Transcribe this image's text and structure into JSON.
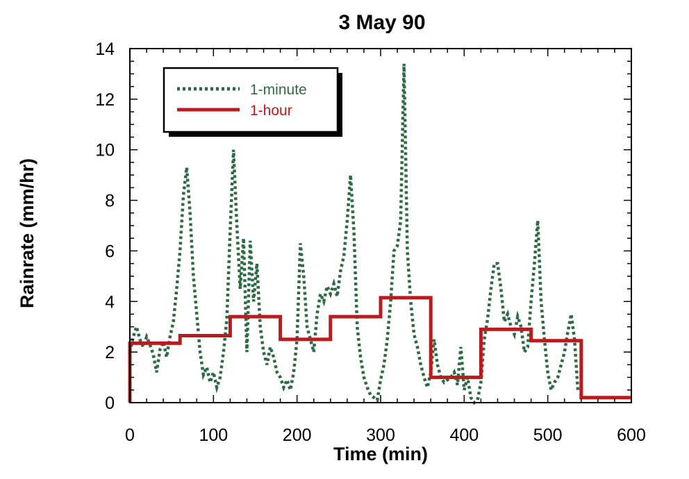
{
  "chart_data": {
    "type": "line",
    "title": "3 May 90",
    "xlabel": "Time (min)",
    "ylabel": "Rainrate (mm/hr)",
    "xlim": [
      0,
      600
    ],
    "ylim": [
      0,
      14
    ],
    "xticks": [
      0,
      100,
      200,
      300,
      400,
      500,
      600
    ],
    "yticks": [
      0,
      2,
      4,
      6,
      8,
      10,
      12,
      14
    ],
    "grid": false,
    "legend_position": "top-left",
    "series": [
      {
        "name": "1-minute",
        "style": "dotted",
        "color": "#2e6b45",
        "x": [
          0,
          4,
          8,
          12,
          16,
          20,
          24,
          28,
          32,
          36,
          40,
          44,
          48,
          52,
          56,
          60,
          64,
          68,
          72,
          76,
          80,
          84,
          88,
          92,
          96,
          100,
          104,
          108,
          112,
          116,
          120,
          124,
          128,
          132,
          136,
          140,
          144,
          148,
          152,
          156,
          160,
          164,
          168,
          172,
          176,
          180,
          184,
          188,
          192,
          196,
          200,
          204,
          208,
          212,
          216,
          220,
          224,
          228,
          232,
          236,
          240,
          244,
          248,
          252,
          256,
          260,
          264,
          268,
          272,
          276,
          280,
          284,
          288,
          292,
          296,
          300,
          304,
          308,
          312,
          316,
          320,
          324,
          328,
          332,
          336,
          340,
          344,
          348,
          352,
          356,
          360,
          364,
          368,
          372,
          376,
          380,
          384,
          388,
          392,
          396,
          400,
          404,
          408,
          412,
          416,
          420,
          424,
          428,
          432,
          436,
          440,
          444,
          448,
          452,
          456,
          460,
          464,
          468,
          472,
          476,
          480,
          484,
          488,
          492,
          496,
          500,
          504,
          508,
          512,
          516,
          520,
          524,
          528,
          532,
          536
        ],
        "y": [
          2.0,
          2.6,
          3.0,
          2.5,
          2.2,
          2.6,
          2.3,
          1.9,
          1.2,
          2.1,
          2.4,
          1.8,
          2.6,
          3.2,
          4.5,
          6.0,
          8.2,
          9.3,
          7.5,
          5.0,
          3.5,
          2.0,
          1.1,
          1.4,
          0.8,
          1.2,
          0.6,
          1.0,
          2.0,
          3.3,
          6.8,
          10.0,
          7.0,
          4.5,
          6.5,
          2.0,
          6.4,
          4.0,
          5.5,
          3.0,
          2.0,
          1.5,
          2.2,
          1.8,
          1.2,
          1.0,
          0.6,
          0.9,
          0.5,
          1.2,
          2.5,
          6.3,
          5.0,
          3.0,
          2.5,
          2.0,
          3.5,
          4.3,
          4.0,
          4.6,
          4.3,
          4.7,
          4.2,
          5.2,
          5.8,
          7.2,
          9.0,
          6.8,
          3.0,
          1.8,
          1.0,
          0.6,
          0.3,
          0.2,
          0.1,
          0.9,
          1.5,
          2.5,
          4.0,
          6.0,
          6.2,
          7.2,
          13.4,
          6.0,
          4.0,
          2.7,
          2.2,
          1.5,
          1.0,
          0.6,
          1.2,
          2.5,
          1.5,
          1.0,
          0.8,
          0.9,
          1.0,
          1.2,
          0.7,
          2.2,
          0.5,
          1.0,
          0.2,
          0.0,
          0.1,
          0.8,
          2.5,
          3.3,
          4.5,
          5.5,
          5.5,
          4.5,
          3.2,
          3.5,
          3.0,
          2.7,
          3.4,
          3.0,
          2.0,
          2.2,
          4.0,
          5.5,
          7.2,
          4.0,
          2.5,
          1.2,
          0.5,
          0.8,
          1.0,
          1.5,
          2.0,
          2.8,
          3.5,
          2.5,
          0.5
        ]
      },
      {
        "name": "1-hour",
        "style": "step",
        "color": "#b81c1c",
        "x": [
          0,
          60,
          120,
          180,
          240,
          300,
          360,
          420,
          480,
          540,
          600
        ],
        "y": [
          2.35,
          2.65,
          3.4,
          2.5,
          3.4,
          4.15,
          1.0,
          2.9,
          2.45,
          0.2,
          0.2
        ]
      }
    ]
  }
}
